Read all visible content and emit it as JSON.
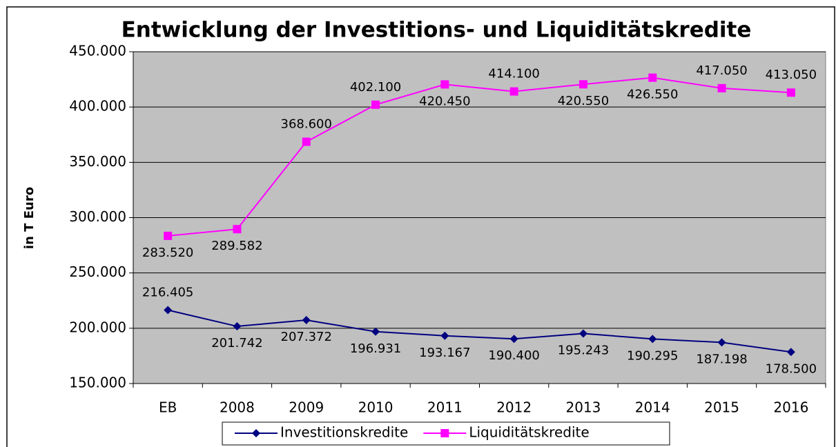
{
  "chart_data": {
    "type": "line",
    "title": "Entwicklung der Investitions- und Liquiditätskredite",
    "y_label": "in T Euro",
    "categories": [
      "EB",
      "2008",
      "2009",
      "2010",
      "2011",
      "2012",
      "2013",
      "2014",
      "2015",
      "2016"
    ],
    "series": [
      {
        "name": "Investitionskredite",
        "color": "#000080",
        "marker": "diamond",
        "values": [
          216405,
          201742,
          207372,
          196931,
          193167,
          190400,
          195243,
          190295,
          187198,
          178500
        ],
        "value_labels": [
          "216.405",
          "201.742",
          "207.372",
          "196.931",
          "193.167",
          "190.400",
          "195.243",
          "190.295",
          "187.198",
          "178.500"
        ]
      },
      {
        "name": "Liquiditätskredite",
        "color": "#ff00ff",
        "marker": "square",
        "values": [
          283520,
          289582,
          368600,
          402100,
          420450,
          414100,
          420550,
          426550,
          417050,
          413050
        ],
        "value_labels": [
          "283.520",
          "289.582",
          "368.600",
          "402.100",
          "420.450",
          "414.100",
          "420.550",
          "426.550",
          "417.050",
          "413.050"
        ]
      }
    ],
    "ylim": [
      150000,
      450000
    ],
    "yticks": [
      {
        "value": 150000,
        "label": "150.000"
      },
      {
        "value": 200000,
        "label": "200.000"
      },
      {
        "value": 250000,
        "label": "250.000"
      },
      {
        "value": 300000,
        "label": "300.000"
      },
      {
        "value": 350000,
        "label": "350.000"
      },
      {
        "value": 400000,
        "label": "400.000"
      },
      {
        "value": 450000,
        "label": "450.000"
      }
    ],
    "grid": true,
    "legend": "bottom"
  }
}
